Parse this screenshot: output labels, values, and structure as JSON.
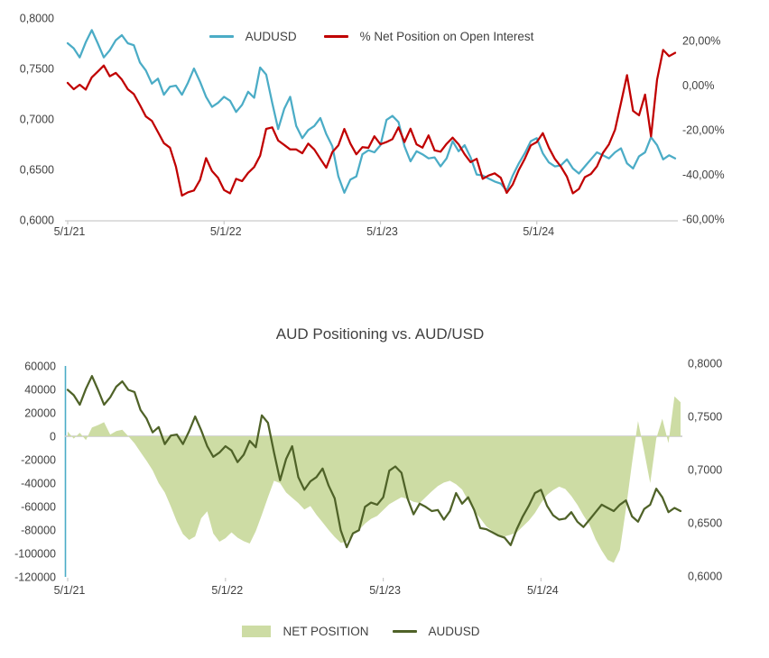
{
  "bottom_title": "AUD Positioning vs. AUD/USD",
  "colors": {
    "audusd_blue": "#4BACC6",
    "net_pct_red": "#C00000",
    "net_area_green": "#CDDCA4",
    "audusd_olive": "#4F6228",
    "axis_gray": "#C9C9C9",
    "label_gray": "#404040",
    "teal_axis_line": "#4BACC6"
  },
  "chart_data": [
    {
      "type": "line",
      "title": "",
      "legend_position": "top-center",
      "grid": false,
      "x_tick_labels": [
        "5/1/21",
        "5/1/22",
        "5/1/23",
        "5/1/24"
      ],
      "x_tick_indices": [
        0,
        26,
        52,
        78
      ],
      "left_axis": {
        "ticks": [
          "0,8000",
          "0,7500",
          "0,7000",
          "0,6500",
          "0,6000"
        ],
        "tick_values": [
          0.8,
          0.75,
          0.7,
          0.65,
          0.6
        ],
        "range": [
          0.6,
          0.8
        ]
      },
      "right_axis": {
        "ticks": [
          "20,00%",
          "0,00%",
          "-20,00%",
          "-40,00%",
          "-60,00%"
        ],
        "tick_values": [
          20,
          0,
          -20,
          -40,
          -60
        ],
        "range": [
          -60,
          20
        ]
      },
      "series": [
        {
          "name": "AUDUSD",
          "axis": "left",
          "type": "line",
          "color": "#4BACC6",
          "values": [
            0.775,
            0.77,
            0.761,
            0.776,
            0.788,
            0.775,
            0.761,
            0.768,
            0.778,
            0.783,
            0.775,
            0.773,
            0.756,
            0.748,
            0.735,
            0.74,
            0.724,
            0.732,
            0.733,
            0.724,
            0.736,
            0.75,
            0.737,
            0.722,
            0.712,
            0.716,
            0.722,
            0.718,
            0.707,
            0.714,
            0.727,
            0.721,
            0.751,
            0.744,
            0.716,
            0.69,
            0.71,
            0.722,
            0.693,
            0.681,
            0.689,
            0.693,
            0.701,
            0.685,
            0.673,
            0.643,
            0.627,
            0.64,
            0.643,
            0.665,
            0.669,
            0.667,
            0.674,
            0.699,
            0.703,
            0.697,
            0.673,
            0.658,
            0.668,
            0.665,
            0.661,
            0.662,
            0.653,
            0.661,
            0.678,
            0.668,
            0.674,
            0.662,
            0.645,
            0.644,
            0.641,
            0.638,
            0.636,
            0.629,
            0.644,
            0.656,
            0.666,
            0.678,
            0.681,
            0.666,
            0.657,
            0.653,
            0.654,
            0.66,
            0.651,
            0.646,
            0.653,
            0.66,
            0.667,
            0.664,
            0.661,
            0.667,
            0.671,
            0.656,
            0.651,
            0.663,
            0.667,
            0.682,
            0.674,
            0.66,
            0.664,
            0.661
          ]
        },
        {
          "name": "% Net Position on Open Interest",
          "axis": "right",
          "type": "line",
          "color": "#C00000",
          "values": [
            1.0,
            -1.8,
            0.2,
            -2.0,
            3.5,
            6.1,
            8.8,
            4.0,
            5.5,
            2.5,
            -1.8,
            -4.0,
            -8.9,
            -14.0,
            -16.0,
            -21.0,
            -26.0,
            -28.0,
            -36.5,
            -49.5,
            -48.0,
            -47.2,
            -42.5,
            -32.7,
            -38.5,
            -41.5,
            -47.0,
            -48.5,
            -42.0,
            -43.0,
            -39.3,
            -36.7,
            -31.6,
            -19.6,
            -18.9,
            -24.8,
            -26.8,
            -28.8,
            -28.8,
            -30.5,
            -26.2,
            -28.8,
            -33.0,
            -37.0,
            -30.0,
            -27.0,
            -19.6,
            -26.2,
            -31.0,
            -27.8,
            -28.1,
            -22.9,
            -26.5,
            -25.5,
            -24.2,
            -18.9,
            -25.5,
            -19.5,
            -26.5,
            -28.0,
            -22.5,
            -29.2,
            -29.8,
            -26.3,
            -23.5,
            -26.5,
            -31.0,
            -34.5,
            -33.0,
            -42.0,
            -40.5,
            -39.5,
            -41.5,
            -48.3,
            -44.5,
            -38.0,
            -33.0,
            -27.0,
            -25.5,
            -21.5,
            -28.0,
            -33.0,
            -36.5,
            -41.0,
            -48.5,
            -46.5,
            -41.2,
            -39.8,
            -36.4,
            -30.4,
            -26.5,
            -20.0,
            -8.0,
            4.5,
            -11.5,
            -13.5,
            -4.2,
            -23.0,
            2.5,
            15.8,
            13.0,
            14.5
          ]
        }
      ]
    },
    {
      "type": "area",
      "title": "AUD Positioning vs. AUD/USD",
      "legend_position": "bottom-center",
      "grid": false,
      "x_tick_labels": [
        "5/1/21",
        "5/1/22",
        "5/1/23",
        "5/1/24"
      ],
      "x_tick_indices": [
        0,
        26,
        52,
        78
      ],
      "left_axis": {
        "ticks": [
          "60000",
          "40000",
          "20000",
          "0",
          "-20000",
          "-40000",
          "-60000",
          "-80000",
          "-100000",
          "-120000"
        ],
        "tick_values": [
          60000,
          40000,
          20000,
          0,
          -20000,
          -40000,
          -60000,
          -80000,
          -100000,
          -120000
        ],
        "range": [
          -120000,
          60000
        ]
      },
      "right_axis": {
        "ticks": [
          "0,8000",
          "0,7500",
          "0,7000",
          "0,6500",
          "0,6000"
        ],
        "tick_values": [
          0.8,
          0.75,
          0.7,
          0.65,
          0.6
        ],
        "range": [
          0.6,
          0.8
        ]
      },
      "series": [
        {
          "name": "NET POSITION",
          "axis": "left",
          "type": "area",
          "color": "#CDDCA4",
          "values": [
            4000,
            -2000,
            3000,
            -3300,
            7500,
            9500,
            12000,
            1500,
            4400,
            5600,
            0,
            -6000,
            -13500,
            -21000,
            -29000,
            -40000,
            -48000,
            -60000,
            -73000,
            -83500,
            -88500,
            -85500,
            -70000,
            -64000,
            -83000,
            -90000,
            -87000,
            -82000,
            -86500,
            -89500,
            -91500,
            -81000,
            -67000,
            -52000,
            -38000,
            -40000,
            -48000,
            -52500,
            -57000,
            -62500,
            -59500,
            -67000,
            -73500,
            -80000,
            -86000,
            -91000,
            -90000,
            -83500,
            -80000,
            -74500,
            -70500,
            -68000,
            -63000,
            -58000,
            -55000,
            -52000,
            -53500,
            -56000,
            -57000,
            -52000,
            -47000,
            -42500,
            -39500,
            -38000,
            -41000,
            -45500,
            -55000,
            -64000,
            -70000,
            -77000,
            -81000,
            -84000,
            -85500,
            -84000,
            -82000,
            -77000,
            -72000,
            -65500,
            -57000,
            -50000,
            -46000,
            -43000,
            -45000,
            -51000,
            -58500,
            -67500,
            -75500,
            -88000,
            -97500,
            -105500,
            -108000,
            -97000,
            -62000,
            -23000,
            13000,
            -13000,
            -40000,
            -2000,
            15000,
            -6000,
            34000,
            29000
          ]
        },
        {
          "name": "AUDUSD",
          "axis": "right",
          "type": "line",
          "color": "#4F6228",
          "values": [
            0.775,
            0.77,
            0.761,
            0.776,
            0.788,
            0.775,
            0.761,
            0.768,
            0.778,
            0.783,
            0.775,
            0.773,
            0.756,
            0.748,
            0.735,
            0.74,
            0.724,
            0.732,
            0.733,
            0.724,
            0.736,
            0.75,
            0.737,
            0.722,
            0.712,
            0.716,
            0.722,
            0.718,
            0.707,
            0.714,
            0.727,
            0.721,
            0.751,
            0.744,
            0.716,
            0.69,
            0.71,
            0.722,
            0.693,
            0.681,
            0.689,
            0.693,
            0.701,
            0.685,
            0.673,
            0.643,
            0.627,
            0.64,
            0.643,
            0.665,
            0.669,
            0.667,
            0.674,
            0.699,
            0.703,
            0.697,
            0.673,
            0.658,
            0.668,
            0.665,
            0.661,
            0.662,
            0.653,
            0.661,
            0.678,
            0.668,
            0.674,
            0.662,
            0.645,
            0.644,
            0.641,
            0.638,
            0.636,
            0.629,
            0.644,
            0.656,
            0.666,
            0.678,
            0.681,
            0.666,
            0.657,
            0.653,
            0.654,
            0.66,
            0.651,
            0.646,
            0.653,
            0.66,
            0.667,
            0.664,
            0.661,
            0.667,
            0.671,
            0.656,
            0.651,
            0.663,
            0.667,
            0.682,
            0.674,
            0.66,
            0.664,
            0.661
          ]
        }
      ]
    }
  ]
}
